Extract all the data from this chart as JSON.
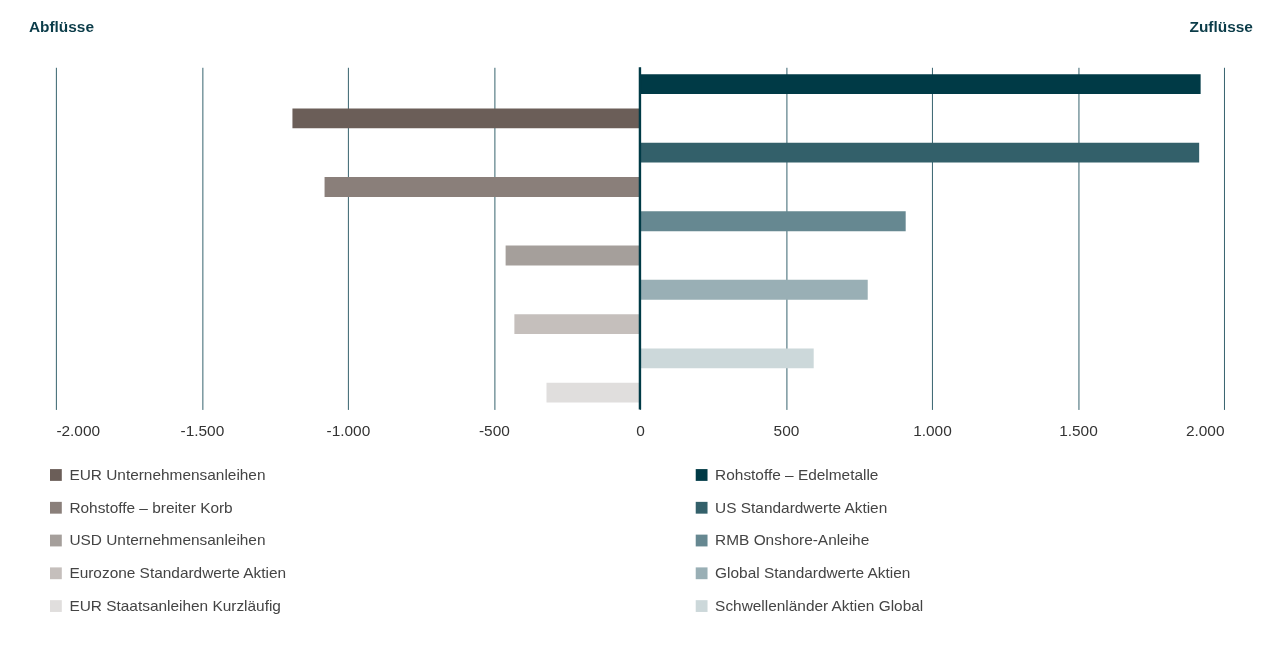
{
  "chart_data": {
    "type": "bar",
    "orientation": "horizontal",
    "categories": [
      null,
      null,
      null,
      null,
      null,
      null,
      null,
      null,
      null,
      null
    ],
    "series": [
      {
        "name": "EUR Unternehmensanleihen",
        "color": "#6b5e58",
        "values": [
          null,
          -1190,
          null,
          null,
          null,
          null,
          null,
          null,
          null,
          null
        ]
      },
      {
        "name": "Rohstoffe – breiter Korb",
        "color": "#8a7f7a",
        "values": [
          null,
          null,
          null,
          -1080,
          null,
          null,
          null,
          null,
          null,
          null
        ]
      },
      {
        "name": "USD Unternehmensanleihen",
        "color": "#a59f9b",
        "values": [
          null,
          null,
          null,
          null,
          null,
          -460,
          null,
          null,
          null,
          null
        ]
      },
      {
        "name": "Eurozone Standardwerte Aktien",
        "color": "#c5bfbc",
        "values": [
          null,
          null,
          null,
          null,
          null,
          null,
          null,
          -430,
          null,
          null
        ]
      },
      {
        "name": "EUR Staatsanleihen Kurzläufig",
        "color": "#e0dedd",
        "values": [
          null,
          null,
          null,
          null,
          null,
          null,
          null,
          null,
          null,
          -320
        ]
      },
      {
        "name": "Rohstoffe – Edelmetalle",
        "color": "#003a46",
        "values": [
          1920,
          null,
          null,
          null,
          null,
          null,
          null,
          null,
          null,
          null
        ]
      },
      {
        "name": "US Standardwerte Aktien",
        "color": "#33606a",
        "values": [
          null,
          null,
          1915,
          null,
          null,
          null,
          null,
          null,
          null,
          null
        ]
      },
      {
        "name": "RMB Onshore-Anleihe",
        "color": "#668891",
        "values": [
          null,
          null,
          null,
          null,
          910,
          null,
          null,
          null,
          null,
          null
        ]
      },
      {
        "name": "Global Standardwerte Aktien",
        "color": "#99afb5",
        "values": [
          null,
          null,
          null,
          null,
          null,
          null,
          780,
          null,
          null,
          null
        ]
      },
      {
        "name": "Schwellenländer Aktien Global",
        "color": "#ccd8da",
        "values": [
          null,
          null,
          null,
          null,
          null,
          null,
          null,
          null,
          595,
          null
        ]
      }
    ],
    "xlim": [
      -2000,
      2000
    ],
    "xticks": [
      {
        "value": -2000,
        "label": "-2.000"
      },
      {
        "value": -1500,
        "label": "-1.500"
      },
      {
        "value": -1000,
        "label": "-1.000"
      },
      -500,
      0,
      500,
      {
        "value": 1000,
        "label": "1.000"
      },
      {
        "value": 1500,
        "label": "1.500"
      },
      {
        "value": 2000,
        "label": "2.000"
      }
    ],
    "grid": "x",
    "ref_lines": [
      {
        "axis": "x",
        "value": 0,
        "color": "#003a46"
      }
    ],
    "annotations": [
      "Abflüsse",
      "Zuflüsse"
    ],
    "legend": "bottom"
  }
}
